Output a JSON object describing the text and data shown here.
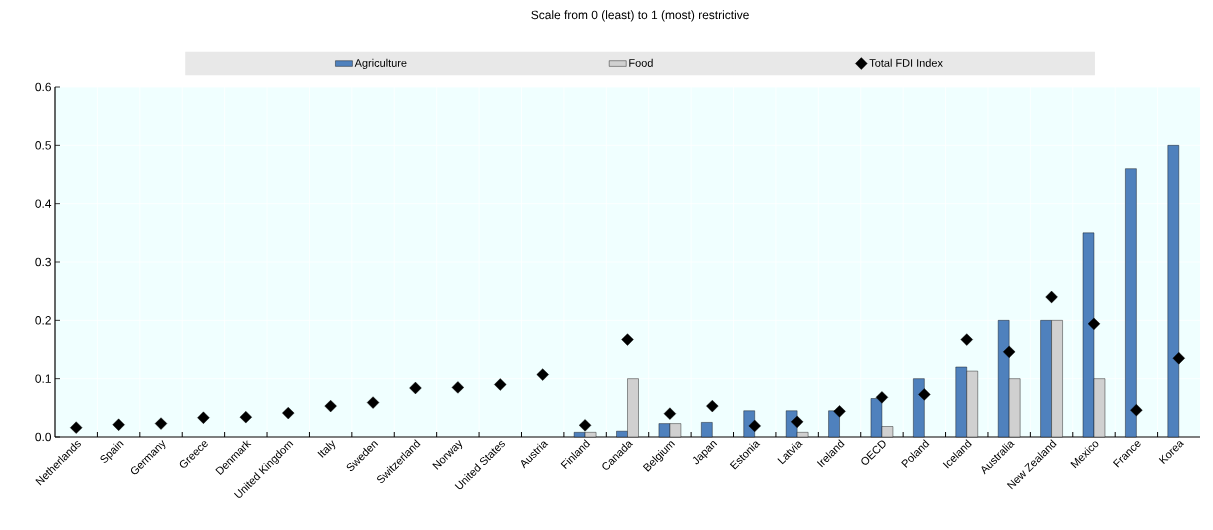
{
  "chart_data": {
    "type": "bar",
    "title": "Scale from 0 (least) to 1 (most) restrictive",
    "categories": [
      "Netherlands",
      "Spain",
      "Germany",
      "Greece",
      "Denmark",
      "United Kingdom",
      "Italy",
      "Sweden",
      "Switzerland",
      "Norway",
      "United States",
      "Austria",
      "Finland",
      "Canada",
      "Belgium",
      "Japan",
      "Estonia",
      "Latvia",
      "Ireland",
      "OECD",
      "Poland",
      "Iceland",
      "Australia",
      "New Zealand",
      "Mexico",
      "France",
      "Korea"
    ],
    "series": [
      {
        "name": "Agriculture",
        "color": "#4f81bd",
        "values": [
          null,
          null,
          null,
          null,
          null,
          null,
          null,
          null,
          null,
          null,
          null,
          null,
          0.008,
          0.01,
          0.023,
          0.025,
          0.045,
          0.045,
          0.045,
          0.066,
          0.1,
          0.12,
          0.2,
          0.2,
          0.35,
          0.46,
          0.5
        ]
      },
      {
        "name": "Food",
        "color": "#d0d0d0",
        "values": [
          null,
          null,
          null,
          null,
          null,
          null,
          null,
          null,
          null,
          null,
          null,
          null,
          0.008,
          0.1,
          0.023,
          null,
          null,
          0.008,
          null,
          0.018,
          null,
          0.113,
          0.1,
          0.2,
          0.1,
          null,
          null
        ]
      },
      {
        "name": "Total FDI Index",
        "type": "scatter",
        "color": "#000000",
        "marker": "diamond",
        "values": [
          0.016,
          0.021,
          0.023,
          0.033,
          0.034,
          0.041,
          0.053,
          0.059,
          0.084,
          0.085,
          0.09,
          0.107,
          0.02,
          0.167,
          0.04,
          0.053,
          0.019,
          0.026,
          0.044,
          0.068,
          0.073,
          0.167,
          0.146,
          0.24,
          0.194,
          0.046,
          0.135
        ]
      }
    ],
    "ylim": [
      0,
      0.6
    ],
    "yticks": [
      {
        "value": 0,
        "label": "0.0"
      },
      0.1,
      0.2,
      0.3,
      0.4,
      0.5,
      0.6
    ],
    "grid": true,
    "legend": "top"
  }
}
